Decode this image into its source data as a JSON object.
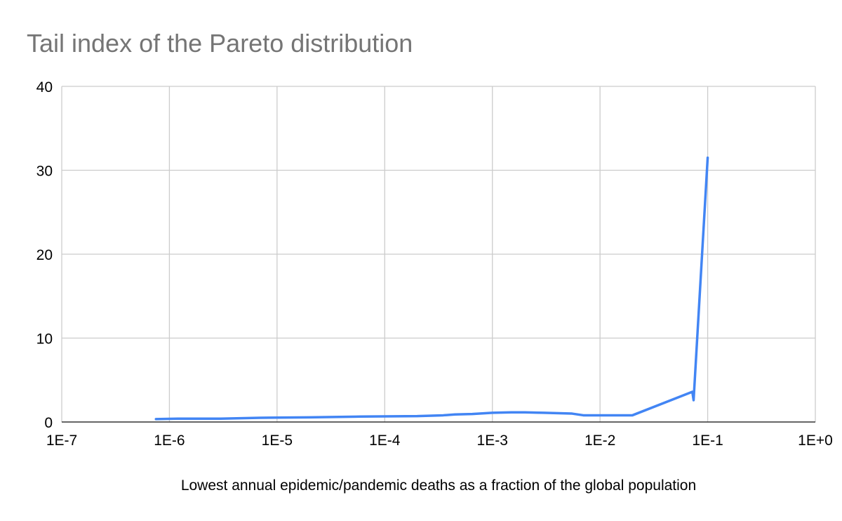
{
  "chart_data": {
    "type": "line",
    "title": "Tail index of the Pareto distribution",
    "xlabel": "Lowest annual epidemic/pandemic deaths as a fraction of the global population",
    "ylabel": "",
    "x_scale": "log",
    "xlim": [
      1e-07,
      1
    ],
    "ylim": [
      0,
      40
    ],
    "x_ticks": [
      {
        "value": 1e-07,
        "label": "1E-7"
      },
      {
        "value": 1e-06,
        "label": "1E-6"
      },
      {
        "value": 1e-05,
        "label": "1E-5"
      },
      {
        "value": 0.0001,
        "label": "1E-4"
      },
      {
        "value": 0.001,
        "label": "1E-3"
      },
      {
        "value": 0.01,
        "label": "1E-2"
      },
      {
        "value": 0.1,
        "label": "1E-1"
      },
      {
        "value": 1,
        "label": "1E+0"
      }
    ],
    "y_ticks": [
      {
        "value": 0,
        "label": "0"
      },
      {
        "value": 10,
        "label": "10"
      },
      {
        "value": 20,
        "label": "20"
      },
      {
        "value": 30,
        "label": "30"
      },
      {
        "value": 40,
        "label": "40"
      }
    ],
    "grid": true,
    "legend": "none",
    "series": [
      {
        "color": "#4285f4",
        "points": [
          [
            7.5e-07,
            0.35
          ],
          [
            1.2e-06,
            0.4
          ],
          [
            3e-06,
            0.4
          ],
          [
            7e-06,
            0.5
          ],
          [
            2e-05,
            0.55
          ],
          [
            6e-05,
            0.65
          ],
          [
            0.0002,
            0.7
          ],
          [
            0.00035,
            0.8
          ],
          [
            0.00045,
            0.9
          ],
          [
            0.00065,
            0.95
          ],
          [
            0.001,
            1.1
          ],
          [
            0.0015,
            1.15
          ],
          [
            0.002,
            1.15
          ],
          [
            0.003,
            1.1
          ],
          [
            0.0055,
            1.0
          ],
          [
            0.007,
            0.8
          ],
          [
            0.01,
            0.8
          ],
          [
            0.02,
            0.8
          ],
          [
            0.072,
            3.6
          ],
          [
            0.074,
            2.6
          ],
          [
            0.1,
            31.5
          ]
        ]
      }
    ]
  }
}
